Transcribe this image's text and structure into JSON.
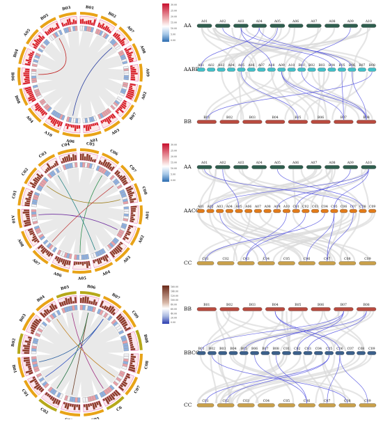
{
  "colors": {
    "aa_bar": "#2e5e4e",
    "aabb_bar": "#3fbfc8",
    "bb_bar": "#b84a3e",
    "aacc_bar": "#e07a1a",
    "cc_bar": "#c9a04a",
    "bbcc_bar": "#3a5f8a",
    "link": "#4a4ae0",
    "circos_orange": "#e8a317",
    "circos_olive": "#b5a81a",
    "circos_red_track": "#d8222a",
    "circos_brown_track": "#8c3b2a"
  },
  "legends": [
    {
      "ticks": [
        "30.00",
        "25.00",
        "20.00",
        "15.00",
        "10.00",
        "5.00",
        "0.00"
      ],
      "scheme": "red"
    },
    {
      "ticks": [
        "30.00",
        "25.00",
        "20.00",
        "15.00",
        "10.00",
        "5.00",
        "0.00"
      ],
      "scheme": "red"
    },
    {
      "ticks": [
        "160.00",
        "140.00",
        "120.00",
        "100.00",
        "80.00",
        "60.00",
        "40.00",
        "20.00",
        "0.00"
      ],
      "scheme": "brown"
    }
  ],
  "circos": [
    {
      "chromosomes": [
        "B01",
        "B02",
        "A07",
        "A08",
        "A09",
        "A02",
        "B07",
        "A03",
        "A01",
        "A06",
        "A10",
        "A04",
        "B08",
        "B06",
        "B04",
        "A05",
        "B05",
        "B03"
      ]
    },
    {
      "chromosomes": [
        "C05",
        "C06",
        "C07",
        "C08",
        "A01",
        "A02",
        "A03",
        "A04",
        "A05",
        "A06",
        "A07",
        "A08",
        "A10",
        "C01",
        "C02",
        "C03",
        "C04"
      ]
    },
    {
      "chromosomes": [
        "B06",
        "B07",
        "C09",
        "B08",
        "C08",
        "C07",
        "C6",
        "C05",
        "C03",
        "C02",
        "C01",
        "B01",
        "B02",
        "B03",
        "B04",
        "B05"
      ]
    }
  ],
  "synteny": [
    {
      "rows": [
        {
          "label": "AA",
          "chromosomes": [
            "A01",
            "A02",
            "A03",
            "A04",
            "A05",
            "A06",
            "A07",
            "A08",
            "A09",
            "A10"
          ]
        },
        {
          "label": "AABB",
          "chromosomes": [
            "A01",
            "A02",
            "A03",
            "A04",
            "A05",
            "A06",
            "A07",
            "A08",
            "A09",
            "A10",
            "B01",
            "B02",
            "B03",
            "B04",
            "B05",
            "B06",
            "B07",
            "B08"
          ]
        },
        {
          "label": "BB",
          "chromosomes": [
            "B01",
            "B02",
            "B03",
            "B04",
            "B05",
            "B06",
            "B07",
            "B08"
          ]
        }
      ]
    },
    {
      "rows": [
        {
          "label": "AA",
          "chromosomes": [
            "A01",
            "A02",
            "A03",
            "A04",
            "A05",
            "A06",
            "A07",
            "A08",
            "A09",
            "A10"
          ]
        },
        {
          "label": "AACC",
          "chromosomes": [
            "A01",
            "A02",
            "A03",
            "A04",
            "A05",
            "A06",
            "A07",
            "A08",
            "A09",
            "A10",
            "C01",
            "C02",
            "C03",
            "C04",
            "C05",
            "C06",
            "C07",
            "C08",
            "C09"
          ]
        },
        {
          "label": "CC",
          "chromosomes": [
            "C01",
            "C02",
            "C03",
            "C04",
            "C05",
            "C06",
            "C07",
            "C08",
            "C09"
          ]
        }
      ]
    },
    {
      "rows": [
        {
          "label": "BB",
          "chromosomes": [
            "B01",
            "B02",
            "B03",
            "B04",
            "B05",
            "B06",
            "B07",
            "B08"
          ]
        },
        {
          "label": "BBCC",
          "chromosomes": [
            "B01",
            "B02",
            "B03",
            "B04",
            "B05",
            "B06",
            "B07",
            "B08",
            "C01",
            "C02",
            "C03",
            "C04",
            "C05",
            "C06",
            "C07",
            "C08",
            "C09"
          ]
        },
        {
          "label": "CC",
          "chromosomes": [
            "C01",
            "C02",
            "C03",
            "C04",
            "C05",
            "C06",
            "C07",
            "C08",
            "C09"
          ]
        }
      ]
    }
  ]
}
